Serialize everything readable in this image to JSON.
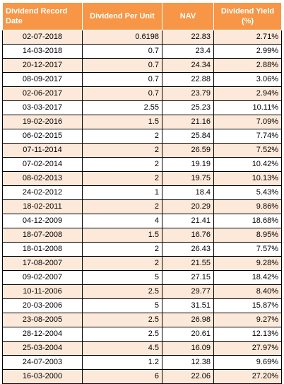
{
  "headers": [
    "Dividend Record Date",
    "Dividend Per Unit",
    "NAV",
    "Dividend Yield (%)"
  ],
  "rows": [
    [
      "02-07-2018",
      "0.6198",
      "22.83",
      "2.71%"
    ],
    [
      "14-03-2018",
      "0.7",
      "23.4",
      "2.99%"
    ],
    [
      "20-12-2017",
      "0.7",
      "24.34",
      "2.88%"
    ],
    [
      "08-09-2017",
      "0.7",
      "22.88",
      "3.06%"
    ],
    [
      "02-06-2017",
      "0.7",
      "23.79",
      "2.94%"
    ],
    [
      "03-03-2017",
      "2.55",
      "25.23",
      "10.11%"
    ],
    [
      "19-02-2016",
      "1.5",
      "21.16",
      "7.09%"
    ],
    [
      "06-02-2015",
      "2",
      "25.84",
      "7.74%"
    ],
    [
      "07-11-2014",
      "2",
      "26.59",
      "7.52%"
    ],
    [
      "07-02-2014",
      "2",
      "19.19",
      "10.42%"
    ],
    [
      "08-02-2013",
      "2",
      "19.75",
      "10.13%"
    ],
    [
      "24-02-2012",
      "1",
      "18.4",
      "5.43%"
    ],
    [
      "18-02-2011",
      "2",
      "20.29",
      "9.86%"
    ],
    [
      "04-12-2009",
      "4",
      "21.41",
      "18.68%"
    ],
    [
      "18-07-2008",
      "1.5",
      "16.76",
      "8.95%"
    ],
    [
      "18-01-2008",
      "2",
      "26.43",
      "7.57%"
    ],
    [
      "17-08-2007",
      "2",
      "21.55",
      "9.28%"
    ],
    [
      "09-02-2007",
      "5",
      "27.15",
      "18.42%"
    ],
    [
      "10-11-2006",
      "2.5",
      "29.77",
      "8.40%"
    ],
    [
      "20-03-2006",
      "5",
      "31.51",
      "15.87%"
    ],
    [
      "23-08-2005",
      "2.5",
      "26.98",
      "9.27%"
    ],
    [
      "28-12-2004",
      "2.5",
      "20.61",
      "12.13%"
    ],
    [
      "25-03-2004",
      "4.5",
      "16.09",
      "27.97%"
    ],
    [
      "24-07-2003",
      "1.2",
      "12.38",
      "9.69%"
    ],
    [
      "16-03-2000",
      "6",
      "22.06",
      "27.20%"
    ]
  ],
  "colors": {
    "header_bg": "#f79646",
    "header_text": "#ffffff",
    "band_row": "#fde9d9",
    "plain_row": "#ffffff"
  }
}
